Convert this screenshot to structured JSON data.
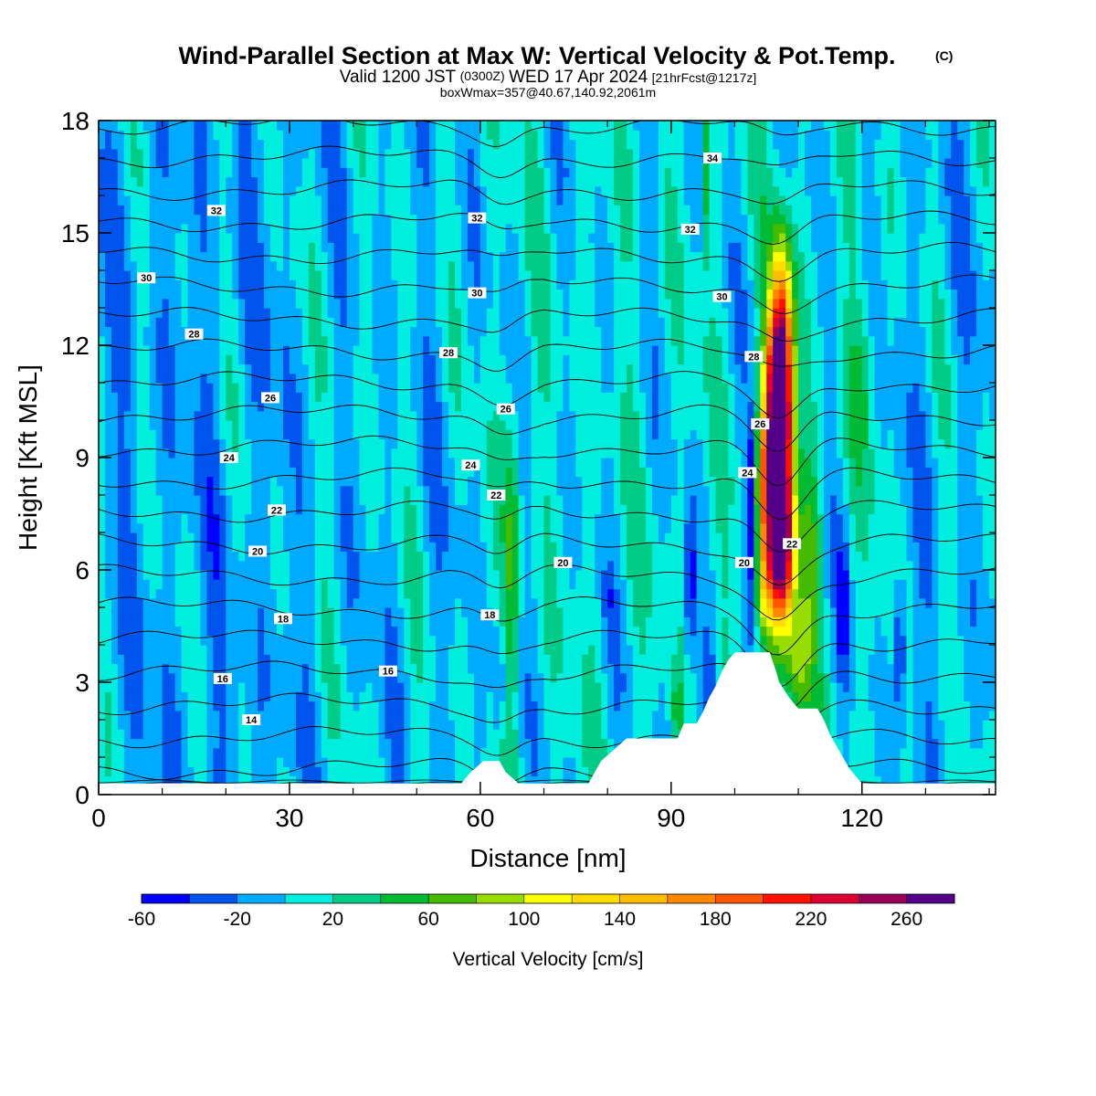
{
  "chart_data": {
    "type": "heatmap",
    "title": "Wind-Parallel Section at Max W: Vertical Velocity & Pot.Temp.",
    "title_suffix": "(C)",
    "subtitle": {
      "prefix": "Valid 1200 JST",
      "utc": "(0300Z)",
      "date": "WED 17 Apr 2024",
      "forecast": "[21hrFcst@1217z]"
    },
    "subtitle2": "boxWmax=357@40.67,140.92,2061m",
    "xlabel": "Distance [nm]",
    "ylabel": "Height [Kft MSL]",
    "xlim": [
      0,
      141
    ],
    "ylim": [
      0,
      18
    ],
    "xticks": [
      0,
      30,
      60,
      90,
      120
    ],
    "yticks": [
      0,
      3,
      6,
      9,
      12,
      15,
      18
    ],
    "colorbar": {
      "title": "Vertical Velocity [cm/s]",
      "levels": [
        -60,
        -40,
        -20,
        0,
        20,
        40,
        60,
        80,
        100,
        120,
        140,
        160,
        180,
        200,
        220,
        240,
        260,
        280
      ],
      "colors": [
        "#0000ff",
        "#0055ee",
        "#00aaff",
        "#00eedd",
        "#00cc88",
        "#00bb33",
        "#44bb00",
        "#99dd00",
        "#ffff00",
        "#ffdd00",
        "#ffbb00",
        "#ff8800",
        "#ff5500",
        "#ff1100",
        "#dd0033",
        "#990055",
        "#550088"
      ],
      "tick_labels": [
        "-60",
        "-20",
        "20",
        "60",
        "100",
        "140",
        "180",
        "220",
        "260"
      ]
    },
    "terrain": [
      [
        0,
        0.3
      ],
      [
        57,
        0.3
      ],
      [
        58.5,
        0.6
      ],
      [
        60.5,
        0.9
      ],
      [
        63,
        0.9
      ],
      [
        64,
        0.6
      ],
      [
        66,
        0.3
      ],
      [
        77,
        0.3
      ],
      [
        78,
        0.6
      ],
      [
        79,
        0.9
      ],
      [
        81,
        1.2
      ],
      [
        83,
        1.5
      ],
      [
        91,
        1.5
      ],
      [
        92,
        1.9
      ],
      [
        94,
        1.9
      ],
      [
        95,
        2.2
      ],
      [
        96,
        2.6
      ],
      [
        97,
        2.9
      ],
      [
        98,
        3.3
      ],
      [
        99,
        3.6
      ],
      [
        100,
        3.8
      ],
      [
        105.5,
        3.8
      ],
      [
        106.5,
        3.3
      ],
      [
        107,
        3.0
      ],
      [
        108.5,
        2.6
      ],
      [
        110,
        2.3
      ],
      [
        113,
        2.3
      ],
      [
        114,
        2.0
      ],
      [
        115,
        1.6
      ],
      [
        116,
        1.3
      ],
      [
        117,
        1.0
      ],
      [
        118,
        0.7
      ],
      [
        119,
        0.5
      ],
      [
        120,
        0.3
      ],
      [
        141,
        0.3
      ]
    ],
    "isentropes": [
      {
        "name": "14",
        "label_at": [
          24,
          2.0
        ]
      },
      {
        "name": "16",
        "label_at": [
          19.5,
          3.1
        ],
        "label_at2": [
          45.5,
          3.3
        ]
      },
      {
        "name": "18",
        "label_at": [
          29,
          4.7
        ],
        "label_at2": [
          61.5,
          4.8
        ]
      },
      {
        "name": "20",
        "label_at": [
          25,
          6.5
        ],
        "label_at2": [
          73,
          6.2
        ],
        "label_at3": [
          101.5,
          6.2
        ]
      },
      {
        "name": "22",
        "label_at": [
          28,
          7.6
        ],
        "label_at2": [
          62.5,
          8.0
        ],
        "label_at3": [
          109,
          6.7
        ]
      },
      {
        "name": "24",
        "label_at": [
          20.5,
          9.0
        ],
        "label_at2": [
          58.5,
          8.8
        ],
        "label_at3": [
          102,
          8.6
        ]
      },
      {
        "name": "26",
        "label_at": [
          27,
          10.6
        ],
        "label_at2": [
          64,
          10.3
        ],
        "label_at3": [
          104,
          9.9
        ]
      },
      {
        "name": "28",
        "label_at": [
          15,
          12.3
        ],
        "label_at2": [
          55,
          11.8
        ],
        "label_at3": [
          103,
          11.7
        ]
      },
      {
        "name": "30",
        "label_at": [
          7.5,
          13.8
        ],
        "label_at2": [
          59.5,
          13.4
        ],
        "label_at3": [
          98,
          13.3
        ]
      },
      {
        "name": "32",
        "label_at": [
          18.5,
          15.6
        ],
        "label_at2": [
          59.5,
          15.4
        ],
        "label_at3": [
          93,
          15.1
        ]
      },
      {
        "name": "34",
        "label_at": [
          96.5,
          17.0
        ]
      }
    ]
  }
}
